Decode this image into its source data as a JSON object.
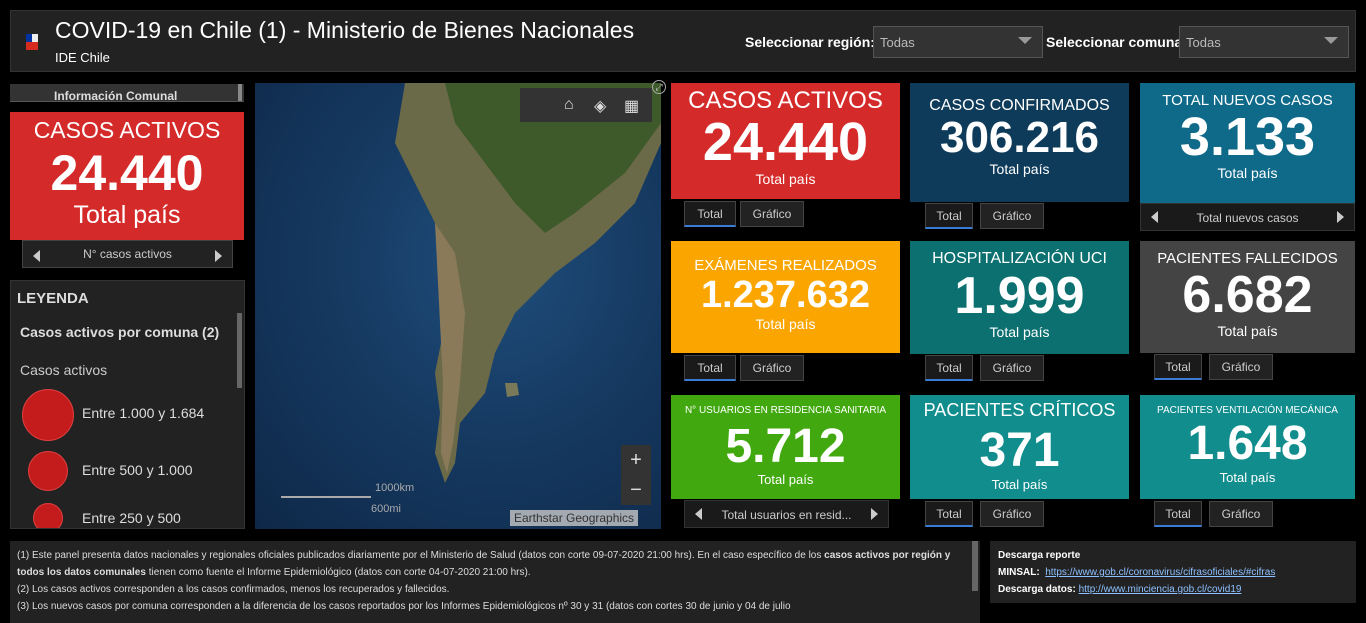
{
  "header": {
    "title": "COVID-19 en Chile (1) - Ministerio de Bienes Nacionales",
    "subtitle": "IDE Chile",
    "region_label": "Seleccionar región:",
    "region_value": "Todas",
    "comuna_label": "Seleccionar comuna",
    "comuna_value": "Todas"
  },
  "left": {
    "tab_label": "Información Comunal",
    "card": {
      "title": "CASOS ACTIVOS",
      "value": "24.440",
      "sub": "Total país"
    },
    "nav_label": "N° casos activos",
    "legend": {
      "header": "LEYENDA",
      "layer": "Casos activos por comuna (2)",
      "caption": "Casos activos",
      "items": [
        "Entre 1.000 y 1.684",
        "Entre 500 y 1.000",
        "Entre 250 y 500"
      ]
    }
  },
  "map": {
    "scale_km": "1000km",
    "scale_mi": "600mi",
    "attribution": "Earthstar Geographics",
    "zoom_in": "+",
    "zoom_out": "−"
  },
  "cards": {
    "activos": {
      "title": "CASOS ACTIVOS",
      "value": "24.440",
      "sub": "Total país",
      "tab1": "Total",
      "tab2": "Gráfico"
    },
    "confirmados": {
      "title": "CASOS CONFIRMADOS",
      "value": "306.216",
      "sub": "Total país",
      "tab1": "Total",
      "tab2": "Gráfico"
    },
    "nuevos": {
      "title": "TOTAL NUEVOS CASOS",
      "value": "3.133",
      "sub": "Total país",
      "nav": "Total nuevos casos"
    },
    "examenes": {
      "title": "EXÁMENES REALIZADOS",
      "value": "1.237.632",
      "sub": "Total país",
      "tab1": "Total",
      "tab2": "Gráfico"
    },
    "uci": {
      "title": "HOSPITALIZACIÓN UCI",
      "value": "1.999",
      "sub": "Total país",
      "tab1": "Total",
      "tab2": "Gráfico"
    },
    "fallecidos": {
      "title": "PACIENTES FALLECIDOS",
      "value": "6.682",
      "sub": "Total país",
      "tab1": "Total",
      "tab2": "Gráfico"
    },
    "residencia": {
      "title": "N° USUARIOS EN RESIDENCIA SANITARIA",
      "value": "5.712",
      "sub": "Total país",
      "nav": "Total usuarios en resid..."
    },
    "criticos": {
      "title": "PACIENTES CRÍTICOS",
      "value": "371",
      "sub": "Total país",
      "tab1": "Total",
      "tab2": "Gráfico"
    },
    "ventilacion": {
      "title": "PACIENTES VENTILACIÓN MECÁNICA",
      "value": "1.648",
      "sub": "Total país",
      "tab1": "Total",
      "tab2": "Gráfico"
    }
  },
  "notes": {
    "line1a": "(1) Este panel presenta datos nacionales y regionales oficiales publicados diariamente por el Ministerio de Salud (datos con corte 09-07-2020 21:00 hrs). En el caso específico de los ",
    "line1b": "casos activos por región y todos los datos comunales",
    "line1c": " tienen como fuente el Informe Epidemiológico (datos con corte 04-07-2020 21:00 hrs).",
    "line2": "(2) Los casos activos corresponden a los casos confirmados, menos los recuperados y fallecidos.",
    "line3": "(3) Los nuevos casos por comuna corresponden a la diferencia de los casos reportados por los Informes Epidemiológicos nº 30 y 31 (datos con  cortes 30  de junio y 04 de julio"
  },
  "download": {
    "title": "Descarga reporte",
    "minsal_label": "MINSAL:",
    "minsal_url": "https://www.gob.cl/coronavirus/cifrasoficiales/#cifras",
    "datos_label": "Descarga datos:",
    "datos_url": "http://www.minciencia.gob.cl/covid19"
  },
  "colors": {
    "red": "#d42a2a",
    "navy": "#0f3b5a",
    "blue": "#0f6a8a",
    "orange": "#fba500",
    "teal": "#0d7070",
    "gray": "#444444",
    "green": "#41a90f",
    "teal2": "#128d8d"
  }
}
